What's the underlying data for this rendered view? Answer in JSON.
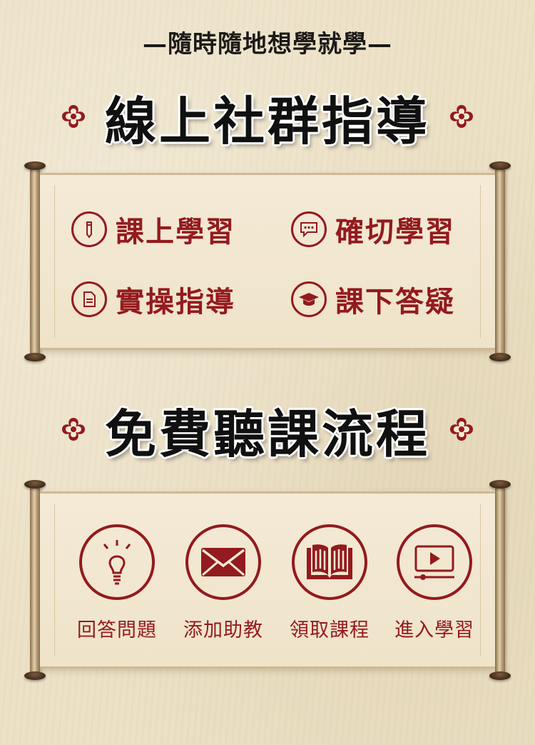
{
  "tagline": "—隨時隨地想學就學—",
  "section1": {
    "title": "線上社群指導",
    "items": [
      {
        "label": "課上學習",
        "icon": "pencil-icon"
      },
      {
        "label": "確切學習",
        "icon": "chat-bubble-icon"
      },
      {
        "label": "實操指導",
        "icon": "document-icon"
      },
      {
        "label": "課下答疑",
        "icon": "graduation-cap-icon"
      }
    ]
  },
  "section2": {
    "title": "免費聽課流程",
    "steps": [
      {
        "label": "回答問題",
        "icon": "lightbulb-icon"
      },
      {
        "label": "添加助教",
        "icon": "envelope-icon"
      },
      {
        "label": "領取課程",
        "icon": "open-book-icon"
      },
      {
        "label": "進入學習",
        "icon": "video-player-icon"
      }
    ]
  },
  "colors": {
    "accent": "#931a1e",
    "background": "#ece1c6",
    "paper": "#f2e7d0"
  }
}
